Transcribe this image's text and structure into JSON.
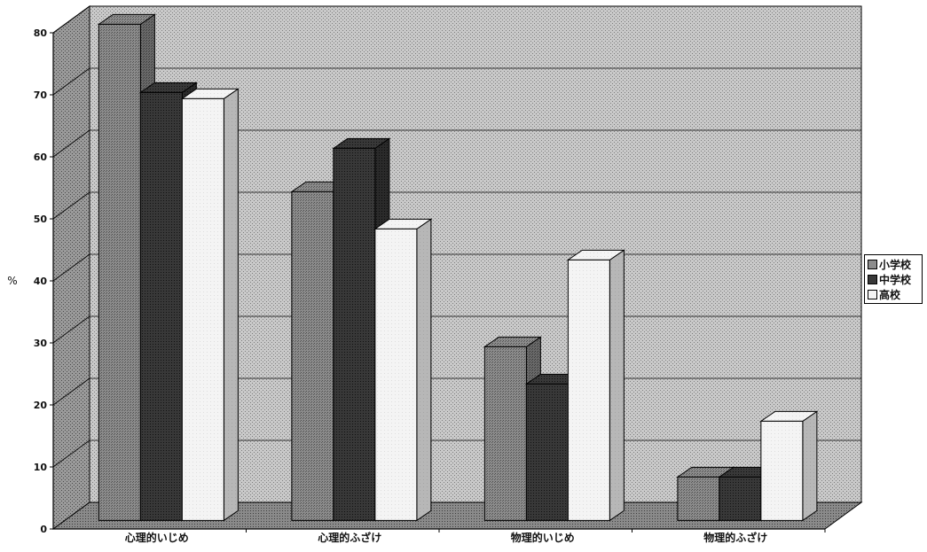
{
  "chart_data": {
    "type": "bar",
    "title": "",
    "xlabel": "",
    "ylabel": "%",
    "ylim": [
      0,
      80
    ],
    "yticks": [
      0,
      10,
      20,
      30,
      40,
      50,
      60,
      70,
      80
    ],
    "categories": [
      "心理的いじめ",
      "心理的ふざけ",
      "物理的いじめ",
      "物理的ふざけ"
    ],
    "series": [
      {
        "name": "小学校",
        "values": [
          80,
          53,
          28,
          7
        ],
        "color": "#7a7a7a"
      },
      {
        "name": "中学校",
        "values": [
          69,
          60,
          22,
          7
        ],
        "color": "#2f2f2f"
      },
      {
        "name": "高校",
        "values": [
          68,
          47,
          42,
          16
        ],
        "color": "#f5f5f5"
      }
    ],
    "grid": true,
    "legend_position": "right",
    "three_d": true
  }
}
